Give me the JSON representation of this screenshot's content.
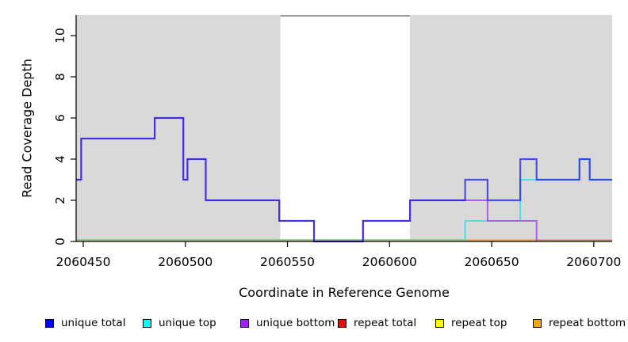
{
  "figure": {
    "y_axis_label": "Read Coverage Depth",
    "x_axis_label": "Coordinate in Reference Genome"
  },
  "chart_data": {
    "type": "line",
    "subtype": "step-coverage-plot",
    "title": "",
    "xlabel": "Coordinate in Reference Genome",
    "ylabel": "Read Coverage Depth",
    "xlim": [
      2060446.5,
      2060709
    ],
    "ylim": [
      0,
      11
    ],
    "grid": false,
    "legend_position": "bottom",
    "x_ticks": [
      "2060450",
      "2060500",
      "2060550",
      "2060600",
      "2060650",
      "2060700"
    ],
    "x_tick_values": [
      2060450,
      2060500,
      2060550,
      2060600,
      2060650,
      2060700
    ],
    "y_ticks": [
      "0",
      "2",
      "4",
      "6",
      "8",
      "10"
    ],
    "y_tick_values": [
      0,
      2,
      4,
      6,
      8,
      10
    ],
    "background_regions": [
      {
        "name": "covered-region-left",
        "x0": 2060446.5,
        "x1": 2060546.5,
        "color": "#d9d9d9"
      },
      {
        "name": "uncovered-gap",
        "x0": 2060546.5,
        "x1": 2060610,
        "color": "#ffffff",
        "top_border_color": "#7f7f7f",
        "top_border_y": 11
      },
      {
        "name": "covered-region-right",
        "x0": 2060610,
        "x1": 2060709,
        "color": "#d9d9d9"
      }
    ],
    "series": [
      {
        "name": "unique total",
        "legend_color": "#0000ff",
        "steps": [
          [
            2060446.5,
            3
          ],
          [
            2060449,
            5
          ],
          [
            2060485,
            6
          ],
          [
            2060499,
            3
          ],
          [
            2060501,
            4
          ],
          [
            2060510,
            2
          ],
          [
            2060546,
            1
          ],
          [
            2060563,
            0
          ],
          [
            2060587,
            1
          ],
          [
            2060610,
            2
          ],
          [
            2060637,
            3
          ],
          [
            2060648,
            2
          ],
          [
            2060664,
            4
          ],
          [
            2060672,
            3
          ],
          [
            2060693,
            4
          ],
          [
            2060698,
            3
          ]
        ],
        "end": 2060709
      },
      {
        "name": "unique top",
        "legend_color": "#00ffff",
        "steps": [
          [
            2060446.5,
            0
          ],
          [
            2060637,
            1
          ],
          [
            2060664,
            3
          ],
          [
            2060693,
            4
          ],
          [
            2060698,
            3
          ]
        ],
        "end": 2060709
      },
      {
        "name": "unique bottom",
        "legend_color": "#a020f0",
        "steps": [
          [
            2060446.5,
            3
          ],
          [
            2060449,
            5
          ],
          [
            2060485,
            6
          ],
          [
            2060499,
            3
          ],
          [
            2060501,
            4
          ],
          [
            2060510,
            2
          ],
          [
            2060546,
            1
          ],
          [
            2060563,
            0
          ],
          [
            2060587,
            1
          ],
          [
            2060610,
            2
          ],
          [
            2060648,
            1
          ],
          [
            2060672,
            0
          ]
        ],
        "end": 2060709
      },
      {
        "name": "repeat total",
        "legend_color": "#ff0000",
        "steps": [
          [
            2060446.5,
            0
          ]
        ],
        "end": 2060709
      },
      {
        "name": "repeat top",
        "legend_color": "#ffff00",
        "steps": [
          [
            2060446.5,
            0
          ]
        ],
        "end": 2060709
      },
      {
        "name": "repeat bottom",
        "legend_color": "#ffa500",
        "steps": [
          [
            2060637,
            0
          ]
        ],
        "end": 2060672
      }
    ],
    "legend": [
      {
        "label": "unique total",
        "color": "#0000ff"
      },
      {
        "label": "unique top",
        "color": "#00ffff"
      },
      {
        "label": "unique bottom",
        "color": "#a020f0"
      },
      {
        "label": "repeat total",
        "color": "#ff0000"
      },
      {
        "label": "repeat top",
        "color": "#ffff00"
      },
      {
        "label": "repeat bottom",
        "color": "#ffa500"
      }
    ]
  }
}
